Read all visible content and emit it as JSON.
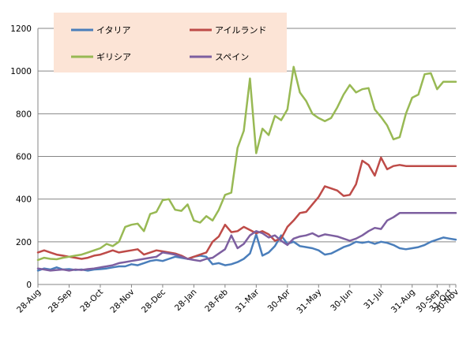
{
  "chart_data": {
    "type": "line",
    "ylim": [
      0,
      1200
    ],
    "yticks": [
      0,
      200,
      400,
      600,
      800,
      1000,
      1200
    ],
    "grid": true,
    "legend_position": "top-left",
    "x_count": 68,
    "xtick_labels": [
      {
        "index": 0,
        "label": "28-Aug"
      },
      {
        "index": 5,
        "label": "28-Sep"
      },
      {
        "index": 10,
        "label": "28-Oct"
      },
      {
        "index": 15,
        "label": "28-Nov"
      },
      {
        "index": 20,
        "label": "28-Dec"
      },
      {
        "index": 25,
        "label": "28-Jan"
      },
      {
        "index": 30,
        "label": "28-Feb"
      },
      {
        "index": 35,
        "label": "31-Mar"
      },
      {
        "index": 40,
        "label": "30-Apr"
      },
      {
        "index": 45,
        "label": "31-May"
      },
      {
        "index": 50,
        "label": "30-Jun"
      },
      {
        "index": 55,
        "label": "31-Jul"
      },
      {
        "index": 60,
        "label": "31-Aug"
      },
      {
        "index": 64,
        "label": "30-Sep"
      },
      {
        "index": 66,
        "label": "31-Oct"
      },
      {
        "index": 67,
        "label": "30-Nov"
      }
    ],
    "series": [
      {
        "name": "イタリア",
        "color": "#4a7ebb",
        "values": [
          65,
          75,
          70,
          80,
          70,
          72,
          68,
          70,
          65,
          70,
          72,
          75,
          80,
          85,
          85,
          95,
          90,
          100,
          110,
          115,
          110,
          120,
          130,
          125,
          120,
          130,
          135,
          130,
          95,
          100,
          90,
          95,
          105,
          120,
          145,
          235,
          135,
          150,
          180,
          230,
          190,
          200,
          180,
          175,
          170,
          160,
          140,
          145,
          160,
          175,
          185,
          200,
          195,
          200,
          190,
          200,
          195,
          185,
          170,
          165,
          170,
          175,
          185,
          200,
          210,
          220,
          215,
          210
        ]
      },
      {
        "name": "アイルランド",
        "color": "#be4b48",
        "values": [
          150,
          160,
          150,
          140,
          135,
          130,
          125,
          120,
          125,
          135,
          140,
          150,
          160,
          150,
          155,
          160,
          165,
          140,
          150,
          160,
          155,
          150,
          145,
          135,
          120,
          130,
          140,
          150,
          200,
          225,
          280,
          245,
          250,
          270,
          255,
          240,
          250,
          235,
          205,
          215,
          270,
          300,
          335,
          340,
          375,
          410,
          460,
          450,
          440,
          415,
          420,
          470,
          580,
          560,
          510,
          595,
          540,
          555,
          560,
          555,
          555,
          555,
          555,
          555,
          555,
          555,
          555,
          555
        ]
      },
      {
        "name": "ギリシア",
        "color": "#98b954",
        "values": [
          115,
          125,
          120,
          118,
          125,
          130,
          135,
          140,
          150,
          160,
          170,
          190,
          180,
          200,
          270,
          280,
          285,
          250,
          330,
          340,
          395,
          400,
          350,
          345,
          375,
          300,
          290,
          320,
          300,
          350,
          420,
          430,
          640,
          720,
          965,
          615,
          730,
          700,
          790,
          770,
          820,
          1020,
          900,
          860,
          800,
          780,
          765,
          780,
          830,
          890,
          935,
          900,
          915,
          920,
          820,
          785,
          745,
          680,
          690,
          800,
          875,
          890,
          985,
          990,
          915,
          950,
          950,
          950
        ]
      },
      {
        "name": "スペイン",
        "color": "#7d5fa0",
        "values": [
          75,
          70,
          65,
          68,
          70,
          65,
          70,
          68,
          72,
          75,
          80,
          85,
          90,
          100,
          105,
          110,
          115,
          120,
          125,
          130,
          150,
          145,
          140,
          130,
          120,
          115,
          110,
          120,
          125,
          145,
          165,
          230,
          170,
          190,
          230,
          250,
          240,
          220,
          230,
          205,
          185,
          215,
          225,
          230,
          240,
          225,
          235,
          230,
          225,
          215,
          205,
          215,
          230,
          250,
          265,
          260,
          300,
          315,
          335,
          335,
          335,
          335,
          335,
          335,
          335,
          335,
          335,
          335
        ]
      }
    ]
  }
}
